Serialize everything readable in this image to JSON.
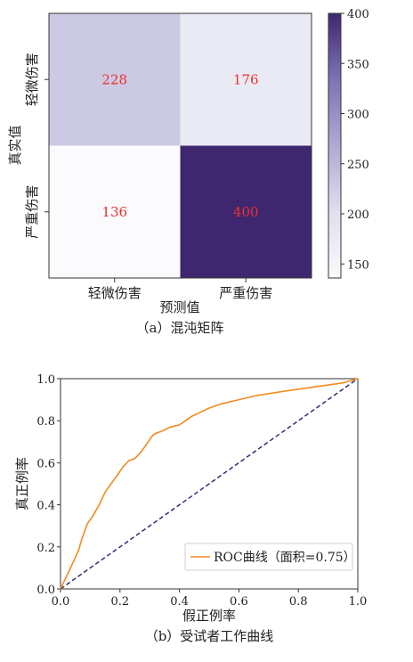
{
  "chart_data": [
    {
      "type": "heatmap",
      "caption": "（a）混沌矩阵",
      "xlabel": "预测值",
      "ylabel": "真实值",
      "x_categories": [
        "轻微伤害",
        "严重伤害"
      ],
      "y_categories": [
        "轻微伤害",
        "严重伤害"
      ],
      "values": [
        [
          228,
          176
        ],
        [
          136,
          400
        ]
      ],
      "colorbar": {
        "min": 136,
        "max": 400,
        "ticks": [
          "150",
          "200",
          "250",
          "300",
          "350",
          "400"
        ],
        "colormap": "purples"
      }
    },
    {
      "type": "line",
      "caption": "（b）受试者工作曲线",
      "xlabel": "假正例率",
      "ylabel": "真正例率",
      "xlim": [
        0,
        1
      ],
      "ylim": [
        0,
        1
      ],
      "x_ticks": [
        "0.0",
        "0.2",
        "0.4",
        "0.6",
        "0.8",
        "1.0"
      ],
      "y_ticks": [
        "0.0",
        "0.2",
        "0.4",
        "0.6",
        "0.8",
        "1.0"
      ],
      "legend_position": "bottom-right",
      "series": [
        {
          "name": "ROC曲线（面积=0.75）",
          "color": "#f28a20",
          "x": [
            0,
            0.02,
            0.04,
            0.06,
            0.07,
            0.08,
            0.09,
            0.11,
            0.13,
            0.15,
            0.17,
            0.19,
            0.21,
            0.23,
            0.25,
            0.27,
            0.29,
            0.31,
            0.32,
            0.34,
            0.37,
            0.4,
            0.42,
            0.44,
            0.47,
            0.5,
            0.54,
            0.57,
            0.6,
            0.66,
            0.75,
            0.85,
            0.95,
            1.0
          ],
          "y": [
            0,
            0.06,
            0.12,
            0.18,
            0.23,
            0.27,
            0.31,
            0.35,
            0.4,
            0.46,
            0.5,
            0.54,
            0.58,
            0.61,
            0.62,
            0.65,
            0.69,
            0.73,
            0.74,
            0.75,
            0.77,
            0.78,
            0.8,
            0.82,
            0.84,
            0.86,
            0.88,
            0.89,
            0.9,
            0.92,
            0.94,
            0.96,
            0.98,
            1.0
          ]
        },
        {
          "name": "",
          "color": "#2e2e7a",
          "dashed": true,
          "x": [
            0,
            1
          ],
          "y": [
            0,
            1
          ]
        }
      ]
    }
  ]
}
